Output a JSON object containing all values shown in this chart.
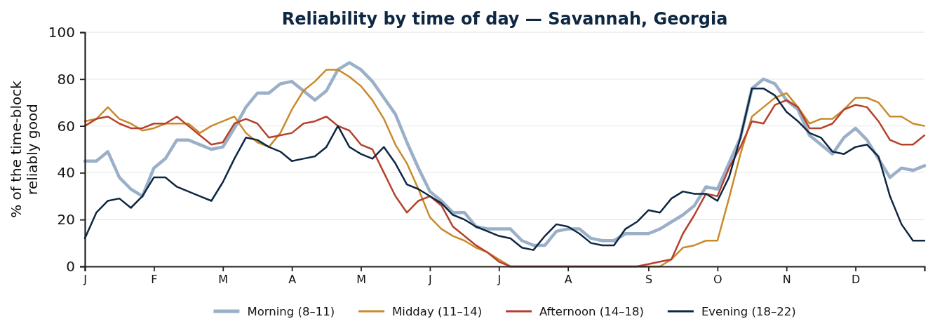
{
  "chart_data": {
    "type": "line",
    "title": "Reliability by time of day — Savannah, Georgia",
    "ylabel": "% of the time-block\nreliably good",
    "categories": [
      "J",
      null,
      null,
      null,
      null,
      null,
      "F",
      null,
      null,
      null,
      null,
      null,
      "M",
      null,
      null,
      null,
      null,
      null,
      "A",
      null,
      null,
      null,
      null,
      null,
      "M",
      null,
      null,
      null,
      null,
      null,
      "J",
      null,
      null,
      null,
      null,
      null,
      "J",
      null,
      null,
      null,
      null,
      null,
      "A",
      null,
      null,
      null,
      null,
      null,
      null,
      "S",
      null,
      null,
      null,
      null,
      null,
      "O",
      null,
      null,
      null,
      null,
      null,
      "N",
      null,
      null,
      null,
      null,
      null,
      "D",
      null,
      null,
      null,
      null,
      null,
      null
    ],
    "series": [
      {
        "name": "Morning (8–11)",
        "color": "#9ab0c8",
        "values": [
          45,
          45,
          49,
          38,
          33,
          30,
          42,
          46,
          54,
          54,
          52,
          50,
          51,
          59,
          68,
          74,
          74,
          78,
          79,
          75,
          71,
          75,
          84,
          87,
          84,
          79,
          72,
          65,
          53,
          42,
          32,
          28,
          23,
          23,
          17,
          16,
          16,
          16,
          11,
          9,
          9,
          15,
          16,
          16,
          12,
          11,
          11,
          14,
          14,
          14,
          16,
          19,
          22,
          26,
          34,
          33,
          44,
          55,
          76,
          80,
          78,
          71,
          67,
          56,
          52,
          48,
          55,
          59,
          54,
          46,
          38,
          42,
          41,
          43
        ]
      },
      {
        "name": "Midday (11–14)",
        "color": "#c98a2b",
        "values": [
          62,
          63,
          68,
          63,
          61,
          58,
          59,
          61,
          61,
          61,
          57,
          60,
          62,
          64,
          57,
          53,
          51,
          57,
          67,
          75,
          79,
          84,
          84,
          81,
          77,
          71,
          63,
          52,
          44,
          33,
          21,
          16,
          13,
          11,
          8,
          6,
          3,
          0,
          0,
          0,
          0,
          0,
          0,
          0,
          0,
          0,
          0,
          0,
          0,
          0,
          0,
          3,
          8,
          9,
          11,
          11,
          29,
          48,
          64,
          68,
          72,
          74,
          68,
          61,
          63,
          63,
          67,
          72,
          72,
          70,
          64,
          64,
          61,
          60
        ]
      },
      {
        "name": "Afternoon (14–18)",
        "color": "#b5412c",
        "values": [
          60,
          63,
          64,
          61,
          59,
          59,
          61,
          61,
          64,
          60,
          56,
          52,
          53,
          61,
          63,
          61,
          55,
          56,
          57,
          61,
          62,
          64,
          60,
          58,
          52,
          50,
          40,
          30,
          23,
          28,
          30,
          26,
          17,
          13,
          9,
          6,
          2,
          0,
          0,
          0,
          0,
          0,
          0,
          0,
          0,
          0,
          0,
          0,
          0,
          1,
          2,
          3,
          14,
          22,
          31,
          30,
          42,
          51,
          62,
          61,
          69,
          71,
          68,
          59,
          59,
          61,
          67,
          69,
          68,
          62,
          54,
          52,
          52,
          56
        ]
      },
      {
        "name": "Evening (18–22)",
        "color": "#0e2742",
        "values": [
          12,
          23,
          28,
          29,
          25,
          30,
          38,
          38,
          34,
          32,
          30,
          28,
          36,
          46,
          55,
          54,
          51,
          49,
          45,
          46,
          47,
          51,
          60,
          51,
          48,
          46,
          51,
          44,
          35,
          33,
          30,
          27,
          22,
          20,
          17,
          15,
          13,
          12,
          8,
          7,
          13,
          18,
          17,
          14,
          10,
          9,
          9,
          16,
          19,
          24,
          23,
          29,
          32,
          31,
          31,
          28,
          38,
          55,
          76,
          76,
          73,
          66,
          62,
          57,
          55,
          49,
          48,
          51,
          52,
          47,
          30,
          18,
          11,
          11
        ]
      }
    ],
    "ylim": [
      0,
      100
    ],
    "yticks": [
      0,
      20,
      40,
      60,
      80,
      100
    ],
    "grid": "y",
    "legend": "bottom"
  }
}
